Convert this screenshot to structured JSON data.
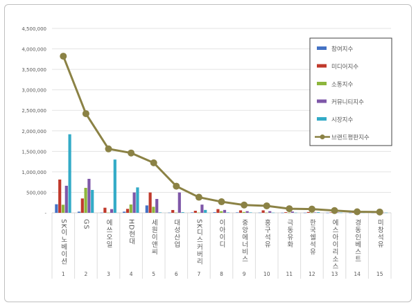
{
  "chart_data": {
    "type": "bar",
    "categories": [
      "SK이노베이션",
      "GS",
      "에쓰오일",
      "HD현대",
      "세원이앤씨",
      "대성산업",
      "SK디스커버리",
      "이아이디",
      "중앙에너비스",
      "흥구석유",
      "극동유화",
      "한국쉘석유",
      "에스아이리소스",
      "경동인베스트",
      "미창석유"
    ],
    "category_numbers": [
      "1",
      "2",
      "3",
      "4",
      "5",
      "6",
      "7",
      "8",
      "9",
      "10",
      "11",
      "12",
      "13",
      "14",
      "15"
    ],
    "ylim": [
      0,
      4500000
    ],
    "yticks": [
      "-",
      "500,000",
      "1,000,000",
      "1,500,000",
      "2,000,000",
      "2,500,000",
      "3,000,000",
      "3,500,000",
      "4,000,000",
      "4,500,000"
    ],
    "grid": true,
    "legend_position": "right",
    "series": [
      {
        "name": "참여지수",
        "type": "bar",
        "color": "#4472C4",
        "values": [
          209000,
          28000,
          5000,
          28000,
          180000,
          5000,
          10000,
          15000,
          10000,
          5000,
          3000,
          3000,
          2000,
          2000,
          2000
        ]
      },
      {
        "name": "미디어지수",
        "type": "bar",
        "color": "#C0392B",
        "values": [
          812000,
          350000,
          124000,
          96000,
          496000,
          68000,
          50000,
          90000,
          60000,
          60000,
          15000,
          20000,
          10000,
          8000,
          5000
        ]
      },
      {
        "name": "소통지수",
        "type": "bar",
        "color": "#8DB63C",
        "values": [
          197000,
          609000,
          5000,
          203000,
          147000,
          5000,
          5000,
          40000,
          20000,
          5000,
          3000,
          3000,
          2000,
          2000,
          2000
        ]
      },
      {
        "name": "커뮤니티지수",
        "type": "bar",
        "color": "#7E57A8",
        "values": [
          660000,
          829000,
          90000,
          496000,
          338000,
          496000,
          200000,
          70000,
          40000,
          40000,
          30000,
          10000,
          8000,
          5000,
          3000
        ]
      },
      {
        "name": "시장지수",
        "type": "bar",
        "color": "#33ABC7",
        "values": [
          1917000,
          558000,
          1300000,
          620000,
          10000,
          15000,
          70000,
          10000,
          10000,
          5000,
          5000,
          15000,
          5000,
          5000,
          5000
        ]
      },
      {
        "name": "브랜드평판지수",
        "type": "line",
        "color": "#8B8245",
        "values": [
          3822000,
          2420000,
          1560000,
          1460000,
          1220000,
          650000,
          380000,
          270000,
          190000,
          170000,
          100000,
          90000,
          55000,
          25000,
          20000
        ]
      }
    ]
  }
}
